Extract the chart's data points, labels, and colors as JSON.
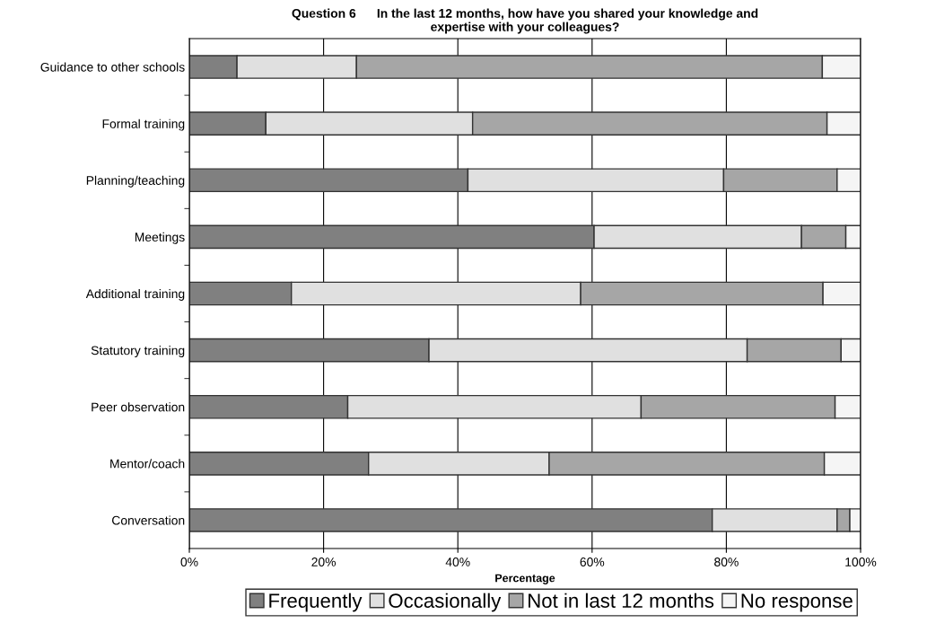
{
  "chart_data": {
    "type": "bar",
    "orientation": "horizontal",
    "stacked": true,
    "title": "Question 6      In the last 12 months, how have you shared your knowledge and\nexpertise with your colleagues?",
    "xlabel": "Percentage",
    "categories": [
      "Guidance to other schools",
      "Formal training",
      "Planning/teaching",
      "Meetings",
      "Additional training",
      "Statutory training",
      "Peer observation",
      "Mentor/coach",
      "Conversation"
    ],
    "series": [
      {
        "name": "Frequently",
        "color": "#808080",
        "values": [
          7.1,
          11.4,
          41.5,
          60.3,
          15.2,
          35.7,
          23.6,
          26.7,
          77.9
        ]
      },
      {
        "name": "Occasionally",
        "color": "#e0e0e0",
        "values": [
          17.8,
          30.8,
          38.1,
          30.9,
          43.1,
          47.4,
          43.7,
          26.9,
          18.6
        ]
      },
      {
        "name": "Not in last 12 months",
        "color": "#a6a6a6",
        "values": [
          69.4,
          52.8,
          16.9,
          6.6,
          36.1,
          14.0,
          28.9,
          41.0,
          1.9
        ]
      },
      {
        "name": "No response",
        "color": "#f5f5f5",
        "values": [
          5.7,
          5.0,
          3.5,
          2.2,
          5.6,
          2.9,
          3.8,
          5.4,
          1.6
        ]
      }
    ],
    "xlim": [
      0,
      100
    ],
    "xticks": [
      {
        "value": 0,
        "label": "0%"
      },
      {
        "value": 20,
        "label": "20%"
      },
      {
        "value": 40,
        "label": "40%"
      },
      {
        "value": 60,
        "label": "60%"
      },
      {
        "value": 80,
        "label": "80%"
      },
      {
        "value": 100,
        "label": "100%"
      }
    ],
    "grid": "x",
    "legend": "bottom"
  }
}
